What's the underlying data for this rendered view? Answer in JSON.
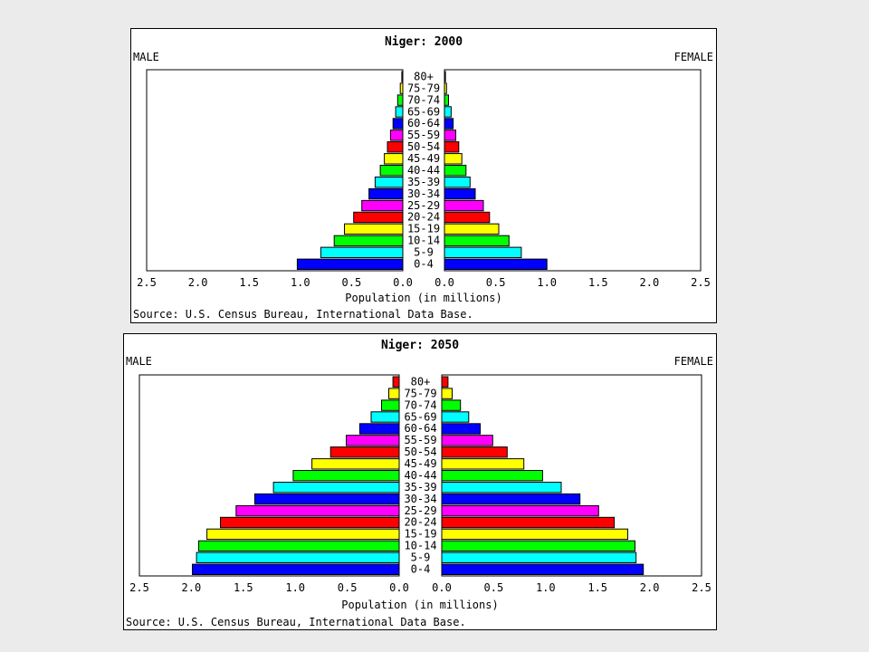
{
  "age_groups": [
    "0-4",
    "5-9",
    "10-14",
    "15-19",
    "20-24",
    "25-29",
    "30-34",
    "35-39",
    "40-44",
    "45-49",
    "50-54",
    "55-59",
    "60-64",
    "65-69",
    "70-74",
    "75-79",
    "80+"
  ],
  "colors": [
    "#0000ff",
    "#00ffff",
    "#00ff00",
    "#ffff00",
    "#ff0000",
    "#ff00ff"
  ],
  "chart_data": [
    {
      "type": "bar",
      "title": "Niger: 2000",
      "left_label": "MALE",
      "right_label": "FEMALE",
      "xlabel": "Population (in millions)",
      "source": "Source: U.S. Census Bureau, International Data Base.",
      "xlim": [
        0,
        2.5
      ],
      "tick_labels": [
        "2.5",
        "2.0",
        "1.5",
        "1.0",
        "0.5",
        "0.0",
        "0.0",
        "0.5",
        "1.0",
        "1.5",
        "2.0",
        "2.5"
      ],
      "categories": [
        "0-4",
        "5-9",
        "10-14",
        "15-19",
        "20-24",
        "25-29",
        "30-34",
        "35-39",
        "40-44",
        "45-49",
        "50-54",
        "55-59",
        "60-64",
        "65-69",
        "70-74",
        "75-79",
        "80+"
      ],
      "series": [
        {
          "name": "MALE",
          "values": [
            1.03,
            0.8,
            0.67,
            0.57,
            0.48,
            0.4,
            0.33,
            0.27,
            0.22,
            0.18,
            0.15,
            0.12,
            0.095,
            0.07,
            0.05,
            0.025,
            0.01
          ]
        },
        {
          "name": "FEMALE",
          "values": [
            1.0,
            0.75,
            0.63,
            0.53,
            0.44,
            0.38,
            0.3,
            0.25,
            0.21,
            0.17,
            0.14,
            0.11,
            0.085,
            0.065,
            0.04,
            0.02,
            0.01
          ]
        }
      ]
    },
    {
      "type": "bar",
      "title": "Niger: 2050",
      "left_label": "MALE",
      "right_label": "FEMALE",
      "xlabel": "Population (in millions)",
      "source": "Source: U.S. Census Bureau, International Data Base.",
      "xlim": [
        0,
        2.5
      ],
      "tick_labels": [
        "2.5",
        "2.0",
        "1.5",
        "1.0",
        "0.5",
        "0.0",
        "0.0",
        "0.5",
        "1.0",
        "1.5",
        "2.0",
        "2.5"
      ],
      "categories": [
        "0-4",
        "5-9",
        "10-14",
        "15-19",
        "20-24",
        "25-29",
        "30-34",
        "35-39",
        "40-44",
        "45-49",
        "50-54",
        "55-59",
        "60-64",
        "65-69",
        "70-74",
        "75-79",
        "80+"
      ],
      "series": [
        {
          "name": "MALE",
          "values": [
            1.99,
            1.95,
            1.93,
            1.85,
            1.72,
            1.57,
            1.39,
            1.21,
            1.02,
            0.84,
            0.66,
            0.51,
            0.38,
            0.27,
            0.17,
            0.1,
            0.06
          ]
        },
        {
          "name": "FEMALE",
          "values": [
            1.94,
            1.87,
            1.86,
            1.79,
            1.66,
            1.51,
            1.33,
            1.15,
            0.97,
            0.79,
            0.63,
            0.49,
            0.37,
            0.26,
            0.18,
            0.1,
            0.06
          ]
        }
      ]
    }
  ]
}
